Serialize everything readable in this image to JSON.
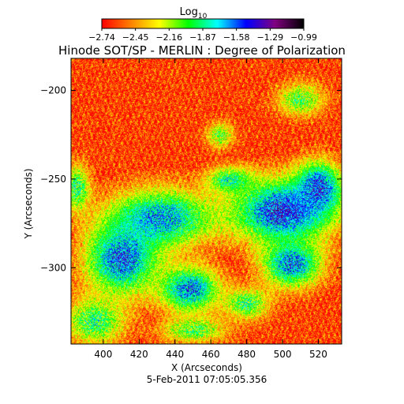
{
  "chart_data": {
    "type": "heatmap",
    "title": "Hinode SOT/SP - MERLIN : Degree of Polarization",
    "xlabel": "X (Arcseconds)",
    "ylabel": "Y (Arcseconds)",
    "timestamp": "5-Feb-2011 07:05:05.356",
    "xlim": [
      382,
      533
    ],
    "ylim": [
      -343,
      -182
    ],
    "x_ticks": [
      400,
      420,
      440,
      460,
      480,
      500,
      520
    ],
    "y_ticks": [
      -200,
      -250,
      -300
    ],
    "colorbar": {
      "label_base": "Log",
      "label_sub": "10",
      "range": [
        -2.74,
        -0.99
      ],
      "tick_labels": [
        "-2.74",
        "-2.45",
        "-2.16",
        "-1.87",
        "-1.58",
        "-1.29",
        "-0.99"
      ],
      "colormap": [
        "#ff0000",
        "#ff8000",
        "#ffff00",
        "#00ff00",
        "#00ffff",
        "#0000ff",
        "#800080",
        "#000000"
      ]
    },
    "regions": [
      {
        "x": 432,
        "y": -272,
        "rx": 32,
        "ry": 18,
        "value": -1.65
      },
      {
        "x": 410,
        "y": -295,
        "rx": 22,
        "ry": 22,
        "value": -1.55
      },
      {
        "x": 395,
        "y": -330,
        "rx": 18,
        "ry": 14,
        "value": -1.9
      },
      {
        "x": 448,
        "y": -312,
        "rx": 18,
        "ry": 14,
        "value": -1.6
      },
      {
        "x": 470,
        "y": -250,
        "rx": 14,
        "ry": 8,
        "value": -1.9
      },
      {
        "x": 500,
        "y": -268,
        "rx": 30,
        "ry": 20,
        "value": -1.45
      },
      {
        "x": 520,
        "y": -255,
        "rx": 14,
        "ry": 16,
        "value": -1.5
      },
      {
        "x": 505,
        "y": -298,
        "rx": 18,
        "ry": 14,
        "value": -1.6
      },
      {
        "x": 480,
        "y": -320,
        "rx": 14,
        "ry": 10,
        "value": -1.95
      },
      {
        "x": 450,
        "y": -335,
        "rx": 20,
        "ry": 8,
        "value": -2.0
      },
      {
        "x": 510,
        "y": -205,
        "rx": 14,
        "ry": 10,
        "value": -2.0
      },
      {
        "x": 385,
        "y": -255,
        "rx": 8,
        "ry": 14,
        "value": -1.9
      },
      {
        "x": 465,
        "y": -225,
        "rx": 8,
        "ry": 8,
        "value": -2.05
      }
    ]
  }
}
